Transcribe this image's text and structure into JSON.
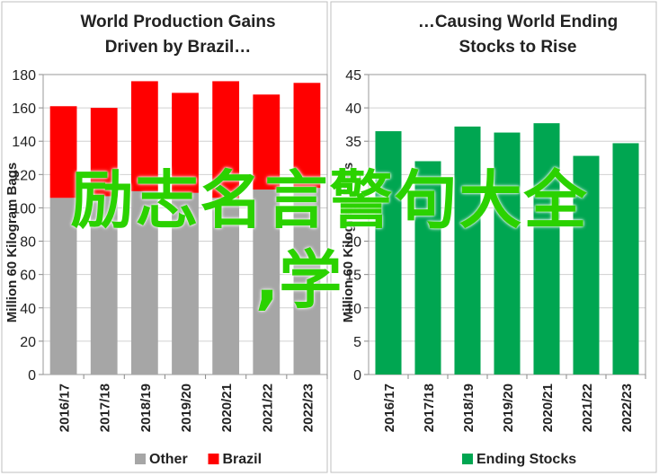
{
  "chart_data": [
    {
      "type": "bar",
      "stacked": true,
      "title": "World Production Gains\nDriven by Brazil…",
      "ylabel": "Million 60 Kilogram Bags",
      "categories": [
        "2016/17",
        "2017/18",
        "2018/19",
        "2019/20",
        "2020/21",
        "2021/22",
        "2022/23"
      ],
      "series": [
        {
          "name": "Other",
          "color": "#a6a6a6",
          "values": [
            106,
            107,
            110,
            109,
            106,
            111,
            112
          ]
        },
        {
          "name": "Brazil",
          "color": "#ff0000",
          "values": [
            55,
            53,
            66,
            60,
            70,
            57,
            63
          ]
        }
      ],
      "ylim": [
        0,
        180
      ],
      "yticks": [
        0,
        20,
        40,
        60,
        80,
        100,
        120,
        140,
        160,
        180
      ],
      "grid": true,
      "legend": "bottom"
    },
    {
      "type": "bar",
      "title": "…Causing World Ending\nStocks to Rise",
      "ylabel": "Million 60 Kilogram Bags",
      "categories": [
        "2016/17",
        "2017/18",
        "2018/19",
        "2019/20",
        "2020/21",
        "2021/22",
        "2022/23"
      ],
      "series": [
        {
          "name": "Ending Stocks",
          "color": "#00a651",
          "values": [
            36.5,
            32,
            37.2,
            36.3,
            37.7,
            32.8,
            34.7
          ]
        }
      ],
      "ylim": [
        0,
        45
      ],
      "yticks": [
        0,
        5,
        10,
        15,
        20,
        25,
        30,
        35,
        40,
        45
      ],
      "grid": true,
      "legend": "bottom"
    }
  ],
  "watermark": {
    "line1": "励志名言警句大全",
    "line2": ",学"
  }
}
